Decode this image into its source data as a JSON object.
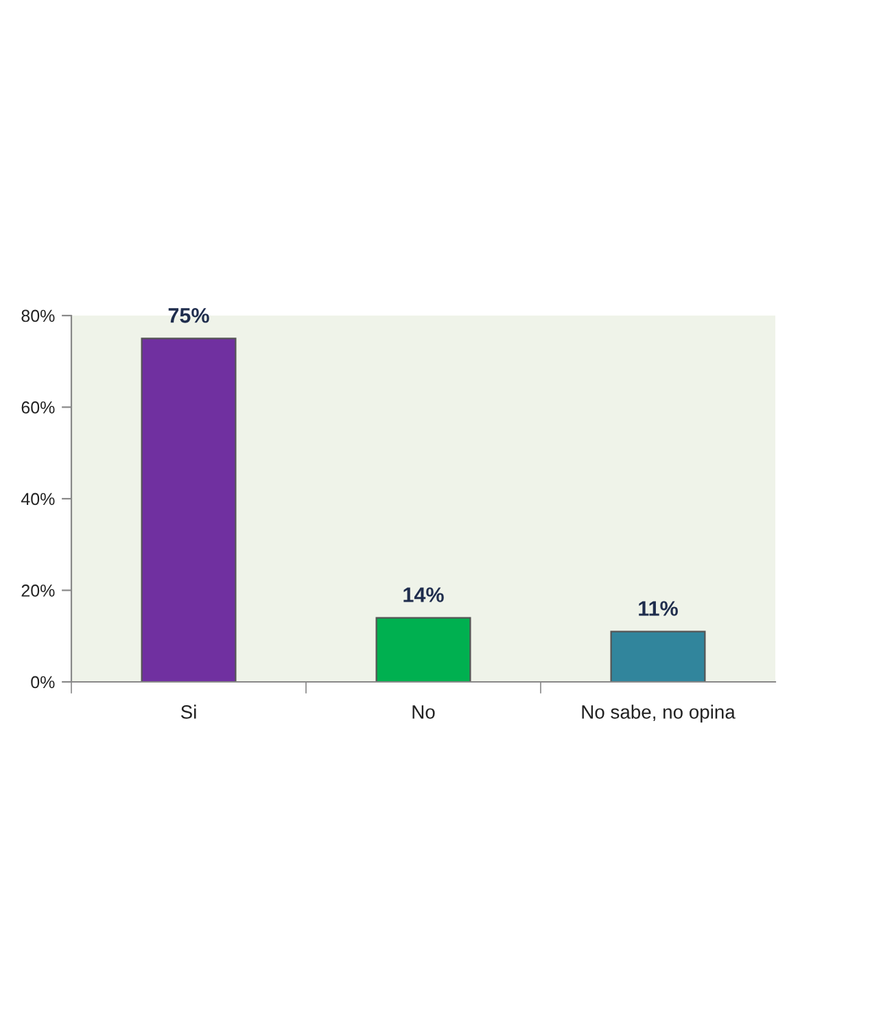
{
  "chart_data": {
    "type": "bar",
    "categories": [
      "Si",
      "No",
      "No sabe, no opina"
    ],
    "values": [
      75,
      14,
      11
    ],
    "colors": [
      "#7030a0",
      "#00b050",
      "#31859c"
    ],
    "ylim": [
      0,
      80
    ],
    "yticks": [
      {
        "value": 0,
        "label": "0%"
      },
      {
        "value": 20,
        "label": "20%"
      },
      {
        "value": 40,
        "label": "40%"
      },
      {
        "value": 60,
        "label": "60%"
      },
      {
        "value": 80,
        "label": "80%"
      }
    ],
    "value_labels": [
      "75%",
      "14%",
      "11%"
    ],
    "grid": false,
    "legend": false
  }
}
